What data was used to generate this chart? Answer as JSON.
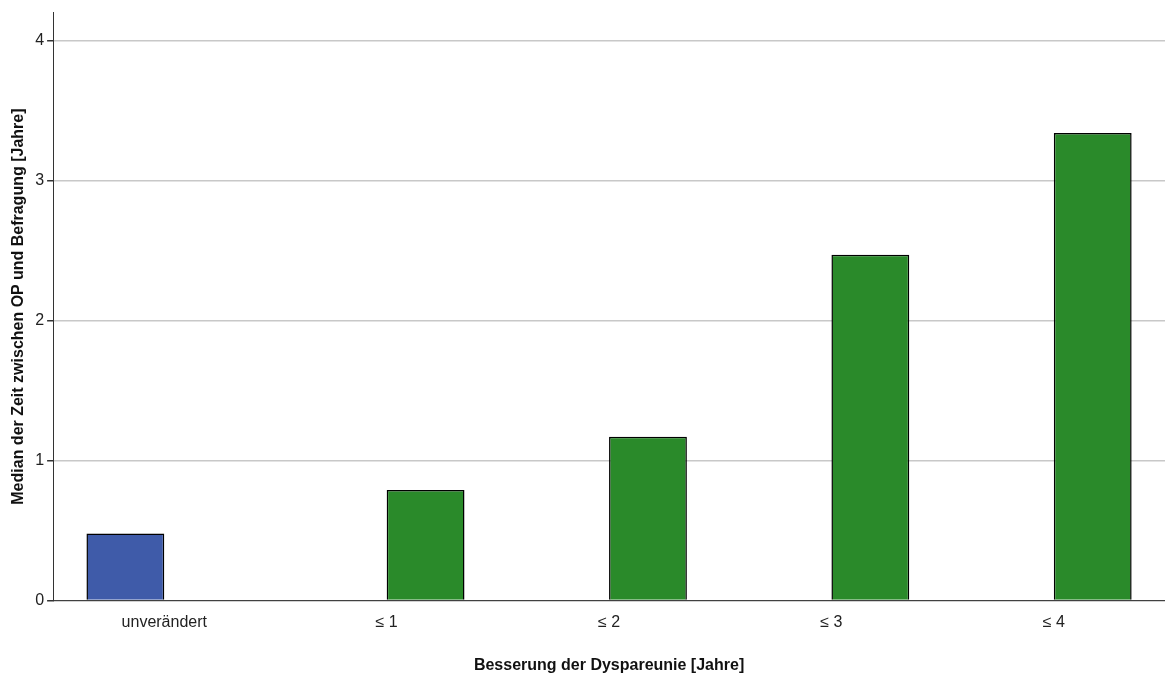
{
  "chart_data": {
    "type": "bar",
    "xlabel": "Besserung der Dyspareunie [Jahre]",
    "ylabel": "Median der Zeit zwischen OP und Befragung [Jahre]",
    "categories": [
      "unverändert",
      "≤ 1",
      "≤ 2",
      "≤ 3",
      "≤ 4"
    ],
    "series": [
      {
        "color": "#3f5ba9",
        "values": [
          0.48,
          null,
          null,
          null,
          null
        ]
      },
      {
        "color": "#2a8a2a",
        "values": [
          null,
          0.79,
          1.17,
          2.47,
          3.34
        ]
      }
    ],
    "ylim": [
      0,
      4.2
    ],
    "yticks": [
      0,
      1,
      2,
      3,
      4
    ],
    "grid": "y",
    "legend": false
  }
}
